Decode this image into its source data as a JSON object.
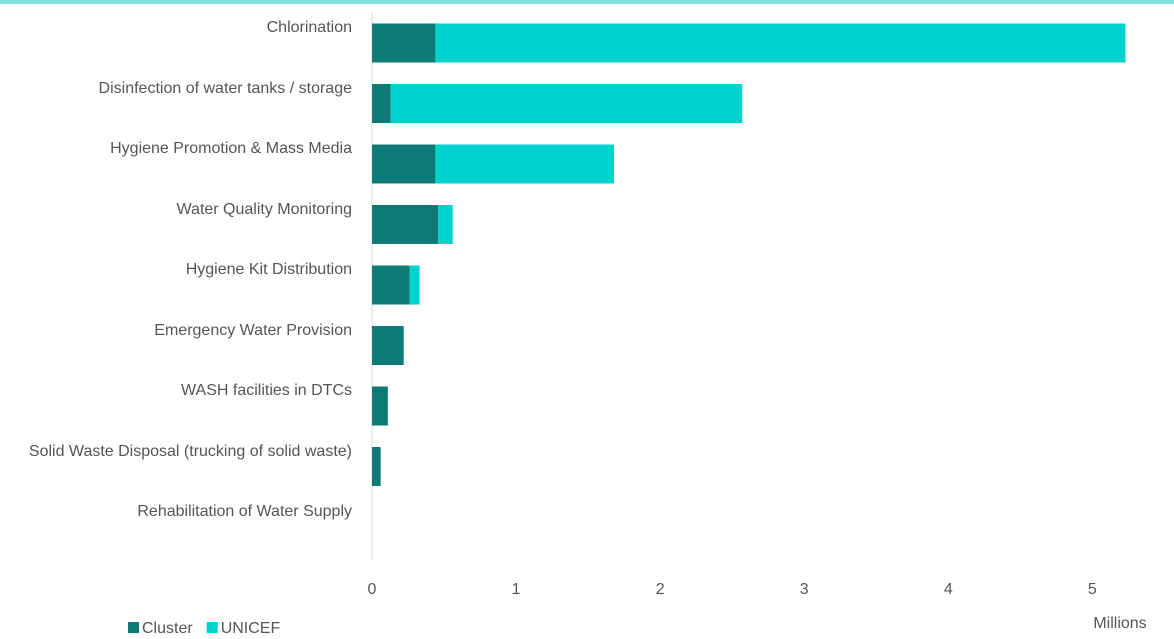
{
  "chart_data": {
    "type": "stacked_barh",
    "categories": [
      "Chlorination",
      "Disinfection of water tanks / storage",
      "Hygiene Promotion & Mass Media",
      "Water Quality Monitoring",
      "Hygiene Kit Distribution",
      "Emergency Water Provision",
      "WASH facilities in DTCs",
      "Solid Waste Disposal (trucking of solid waste)",
      "Rehabilitation of Water Supply"
    ],
    "series": [
      {
        "name": "Cluster",
        "color": "#0d7a76",
        "values": [
          0.44,
          0.13,
          0.44,
          0.46,
          0.26,
          0.22,
          0.11,
          0.06,
          0
        ]
      },
      {
        "name": "UNICEF",
        "color": "#00d2cd",
        "values": [
          4.79,
          2.44,
          1.24,
          0.1,
          0.07,
          0,
          0,
          0,
          0
        ]
      }
    ],
    "x_label": "Millions",
    "xlim": [
      0,
      5.4
    ],
    "xticks": [
      0,
      1,
      2,
      3,
      4,
      5
    ]
  }
}
